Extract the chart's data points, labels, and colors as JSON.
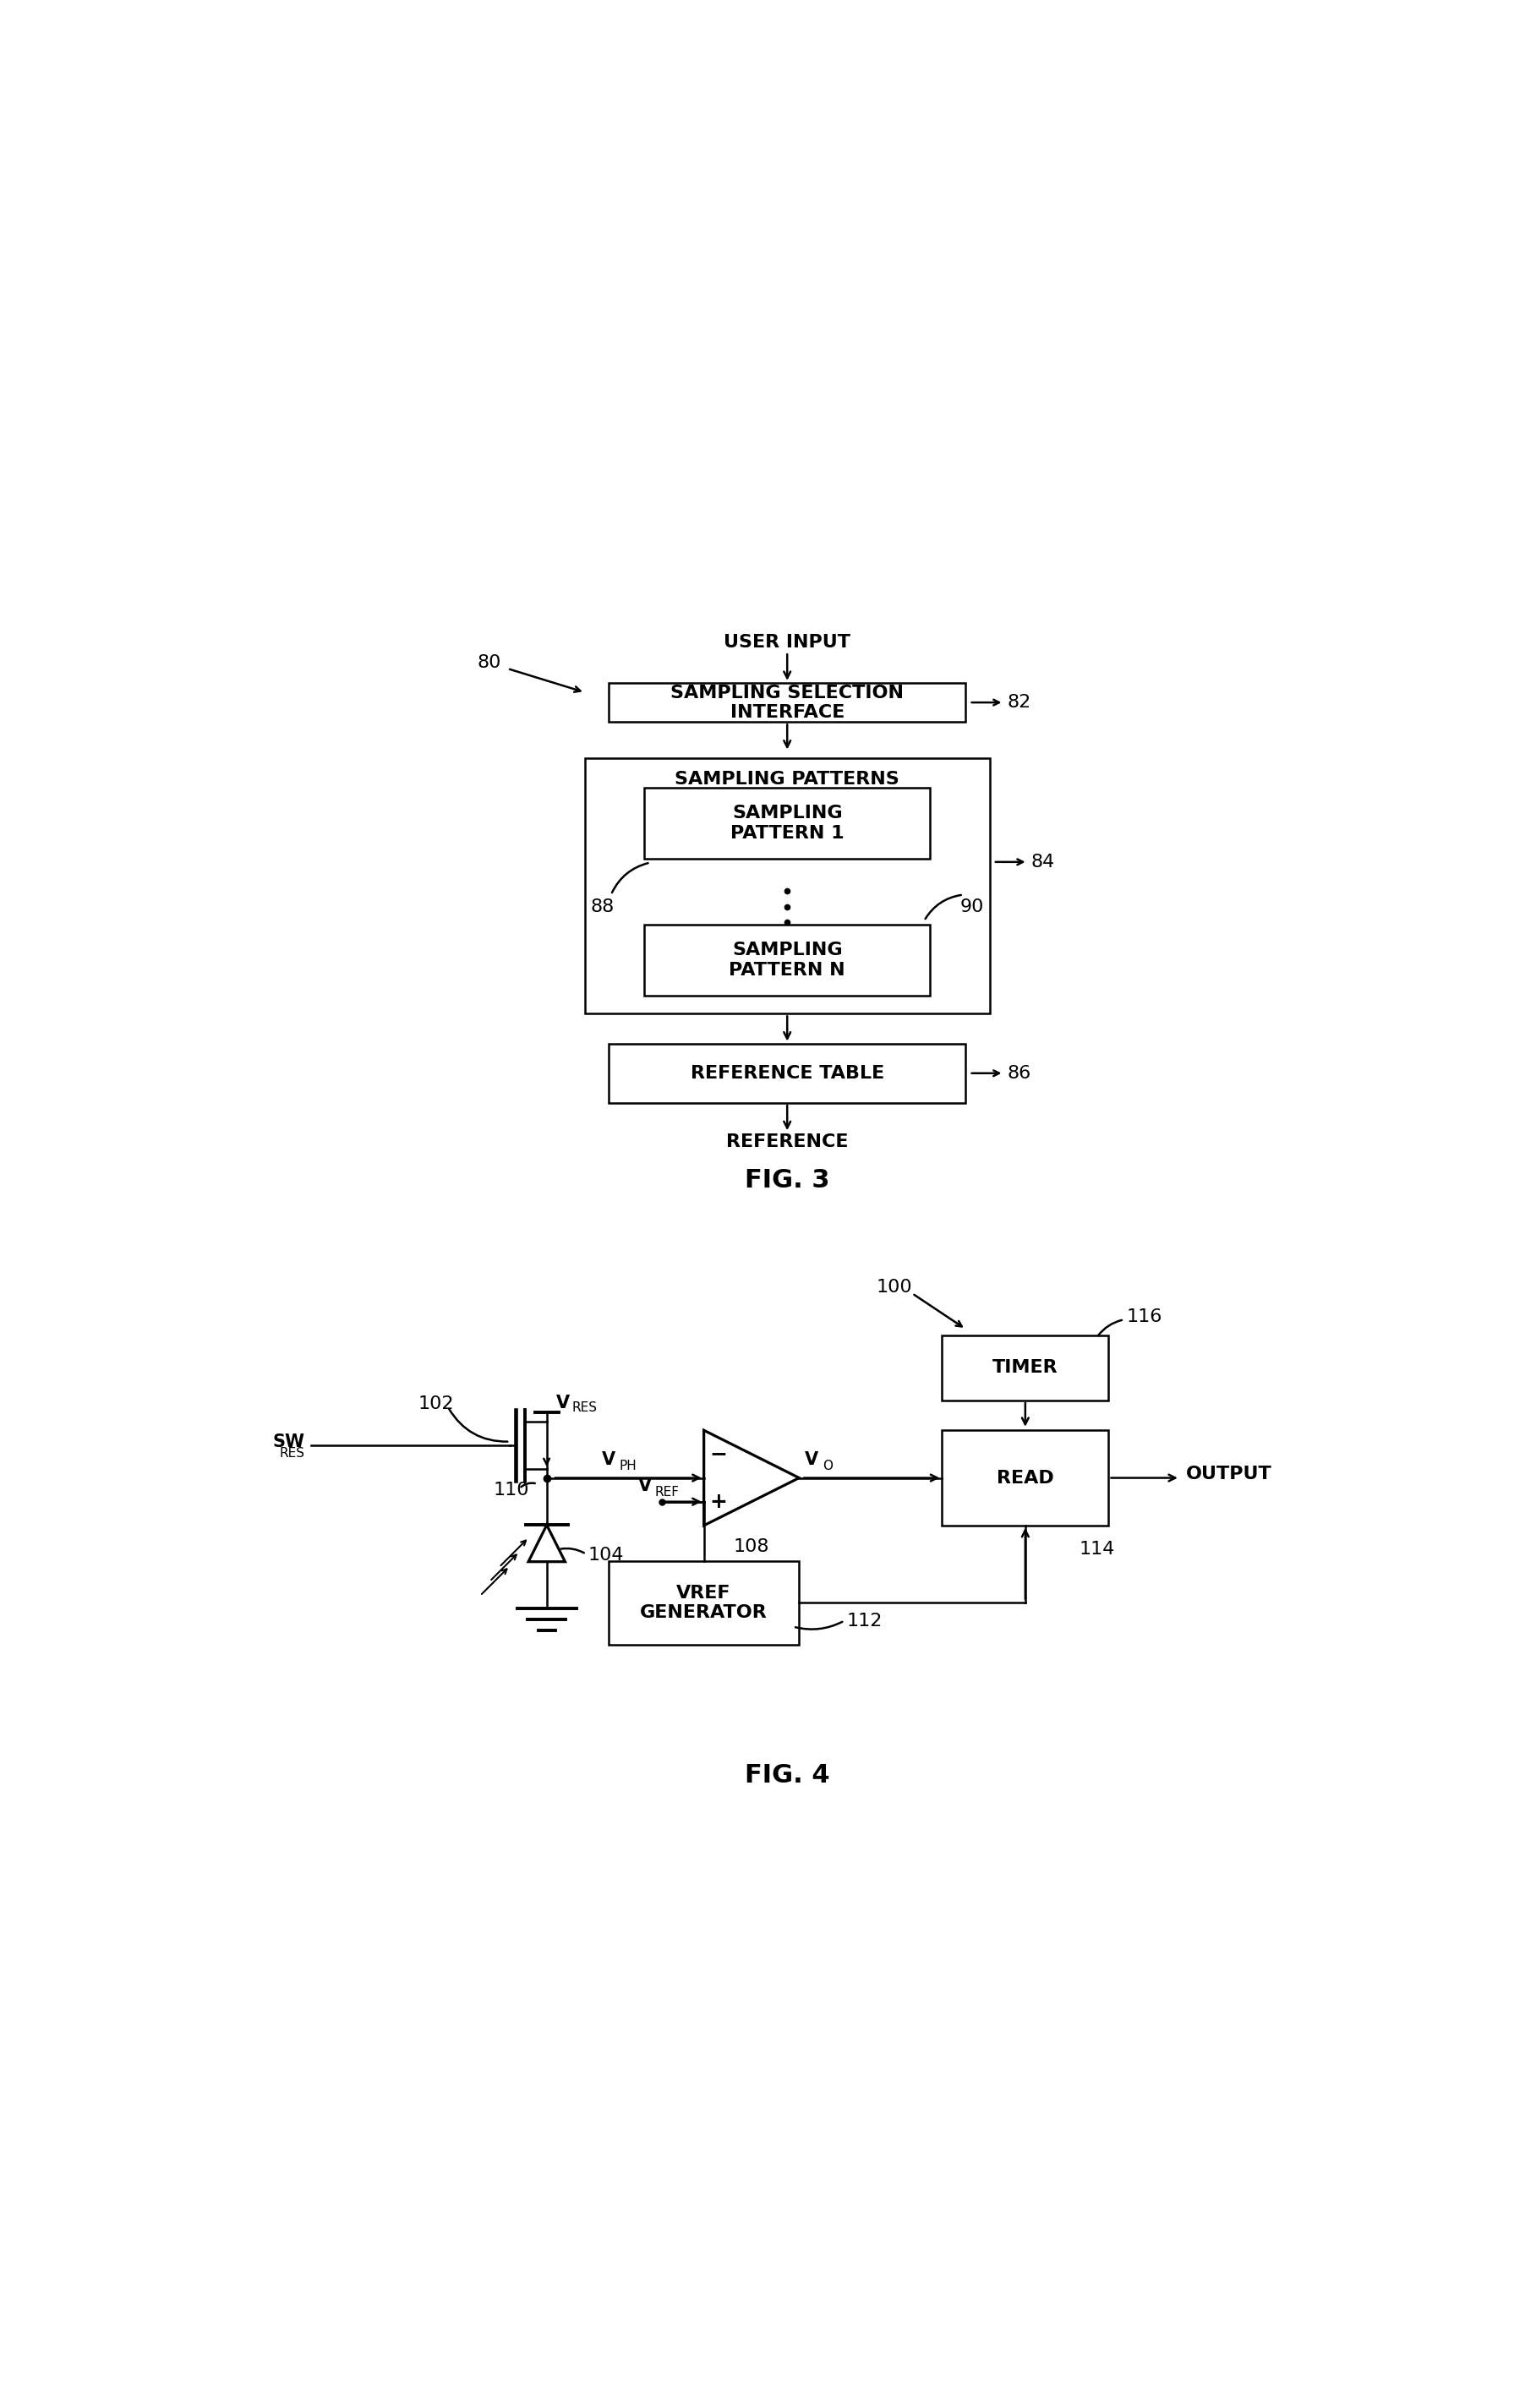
{
  "fig_width": 18.17,
  "fig_height": 28.49,
  "bg_color": "#ffffff",
  "line_color": "#000000",
  "fig3": {
    "title": "FIG. 3",
    "label_80": "80",
    "label_82": "82",
    "label_84": "84",
    "label_86": "86",
    "label_88": "88",
    "label_90": "90",
    "text_user_input": "USER INPUT",
    "text_ssi": "SAMPLING SELECTION\nINTERFACE",
    "text_sp": "SAMPLING PATTERNS",
    "text_sp1": "SAMPLING\nPATTERN 1",
    "text_spn": "SAMPLING\nPATTERN N",
    "text_rt": "REFERENCE TABLE",
    "text_ref": "REFERENCE"
  },
  "fig4": {
    "title": "FIG. 4",
    "label_100": "100",
    "label_102": "102",
    "label_104": "104",
    "label_108": "108",
    "label_110": "110",
    "label_112": "112",
    "label_114": "114",
    "label_116": "116",
    "text_vres": "V",
    "text_vres_sub": "RES",
    "text_swres": "SW",
    "text_swres_sub": "RES",
    "text_vph": "V",
    "text_vph_sub": "PH",
    "text_vo": "V",
    "text_vo_sub": "O",
    "text_vref": "V",
    "text_vref_sub": "REF",
    "text_timer": "TIMER",
    "text_read": "READ",
    "text_output": "OUTPUT",
    "text_vref_gen": "VREF\nGENERATOR"
  }
}
